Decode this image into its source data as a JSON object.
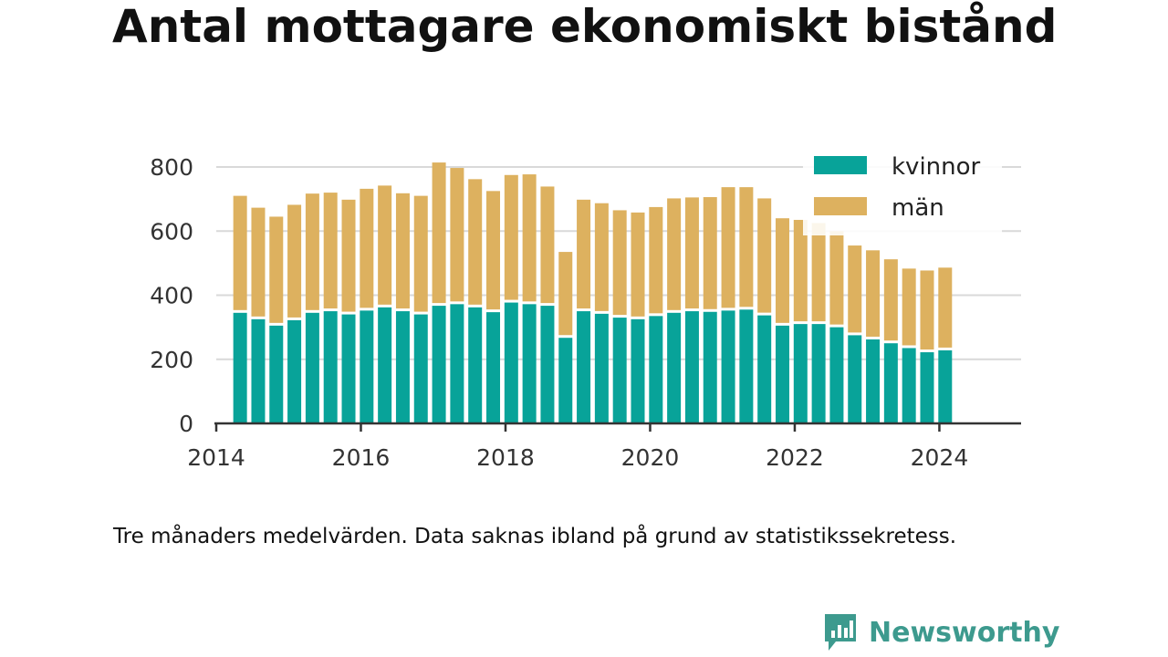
{
  "title": "Antal mottagare ekonomiskt bistånd",
  "note": "Tre månaders medelvärden. Data saknas ibland på grund av statistikssekretess.",
  "brand": {
    "name": "Newsworthy",
    "color": "#3d9a8e"
  },
  "colors": {
    "kvinnor": "#08a399",
    "man": "#ddb15f",
    "axis": "#333333",
    "grid": "#d9d9d9"
  },
  "chart_data": {
    "type": "bar",
    "stacked": true,
    "title": "Antal mottagare ekonomiskt bistånd",
    "xlabel": "",
    "ylabel": "",
    "ylim": [
      0,
      800
    ],
    "yticks": [
      0,
      200,
      400,
      600,
      800
    ],
    "xlim": [
      2014,
      2025.13
    ],
    "xticks": [
      2014,
      2016,
      2018,
      2020,
      2022,
      2024
    ],
    "grid": true,
    "legend_position": "top-right",
    "x": [
      2014.33,
      2014.58,
      2014.83,
      2015.08,
      2015.33,
      2015.58,
      2015.83,
      2016.08,
      2016.33,
      2016.58,
      2016.83,
      2017.08,
      2017.33,
      2017.58,
      2017.83,
      2018.08,
      2018.33,
      2018.58,
      2018.83,
      2019.08,
      2019.33,
      2019.58,
      2019.83,
      2020.08,
      2020.33,
      2020.58,
      2020.83,
      2021.08,
      2021.33,
      2021.58,
      2021.83,
      2022.08,
      2022.33,
      2022.58,
      2022.83,
      2023.08,
      2023.33,
      2023.58,
      2023.83,
      2024.08
    ],
    "series": [
      {
        "name": "kvinnor",
        "values": [
          345,
          325,
          305,
          322,
          345,
          350,
          340,
          352,
          362,
          350,
          340,
          367,
          372,
          362,
          347,
          377,
          372,
          367,
          267,
          350,
          342,
          330,
          325,
          335,
          345,
          350,
          348,
          352,
          355,
          337,
          305,
          310,
          310,
          300,
          275,
          262,
          250,
          235,
          222,
          228
        ]
      },
      {
        "name": "män",
        "values": [
          365,
          348,
          340,
          360,
          372,
          370,
          358,
          380,
          380,
          368,
          370,
          447,
          425,
          400,
          378,
          398,
          405,
          372,
          268,
          348,
          345,
          335,
          333,
          340,
          357,
          355,
          358,
          385,
          382,
          365,
          335,
          325,
          315,
          300,
          280,
          278,
          262,
          248,
          255,
          258
        ]
      }
    ]
  }
}
